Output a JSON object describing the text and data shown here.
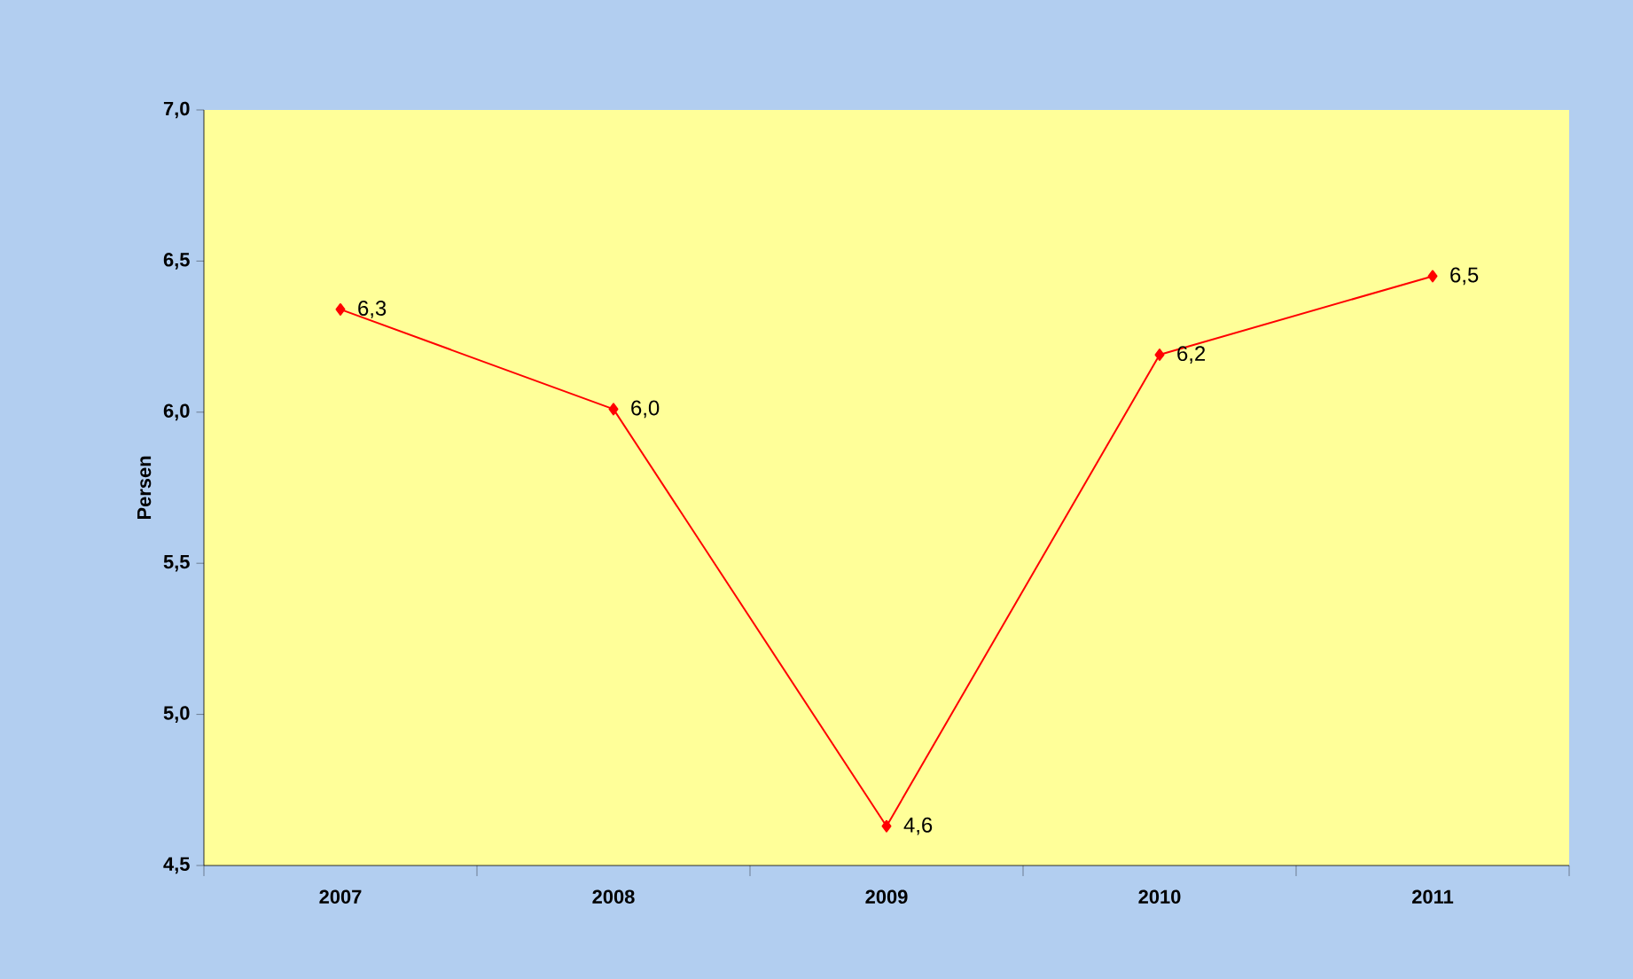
{
  "chart_data": {
    "type": "line",
    "ylabel": "Persen",
    "categories": [
      "2007",
      "2008",
      "2009",
      "2010",
      "2011"
    ],
    "series": [
      {
        "color": "#ff0000",
        "values": [
          6.34,
          6.01,
          4.63,
          6.19,
          6.45
        ],
        "value_labels": [
          "6,3",
          "6,0",
          "4,6",
          "6,2",
          "6,5"
        ]
      }
    ],
    "ylim": [
      4.5,
      7.0
    ],
    "yticks": [
      {
        "value": 4.5,
        "label": "4,5"
      },
      {
        "value": 5.0,
        "label": "5,0"
      },
      {
        "value": 5.5,
        "label": "5,5"
      },
      {
        "value": 6.0,
        "label": "6,0"
      },
      {
        "value": 6.5,
        "label": "6,5"
      },
      {
        "value": 7.0,
        "label": "7,0"
      }
    ],
    "marker": "diamond",
    "line_style": "solid",
    "grid": false
  }
}
